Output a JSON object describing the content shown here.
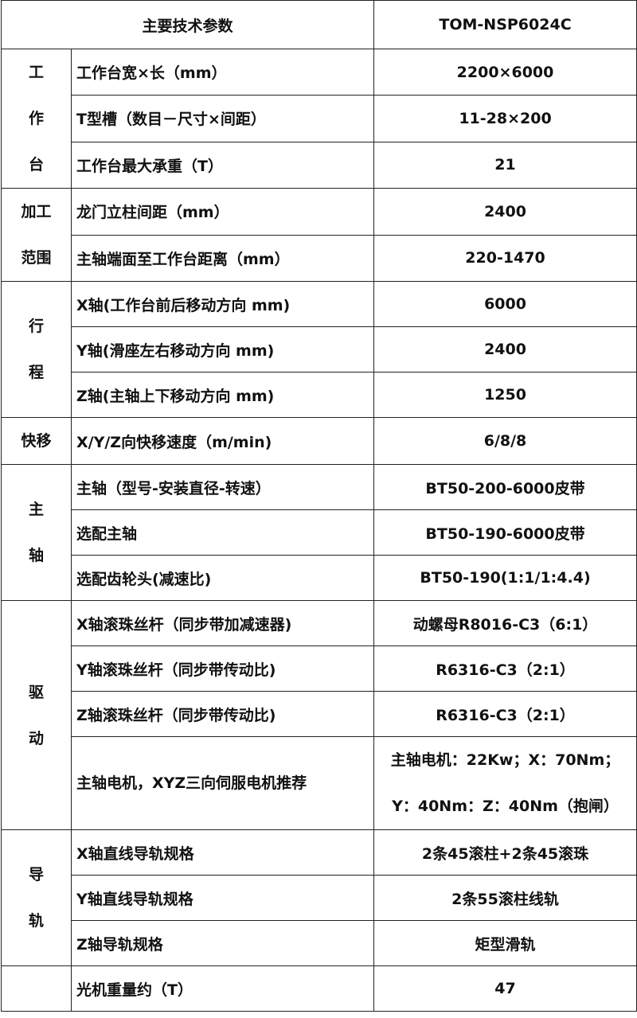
{
  "header": {
    "title": "主要技术参数",
    "model": "TOM-NSP6024C"
  },
  "groups": [
    {
      "label": "工作台",
      "rows": [
        [
          "工作台宽×长（mm）",
          "2200×6000"
        ],
        [
          "T型槽（数目－尺寸×间距）",
          "11-28×200"
        ],
        [
          "工作台最大承重（T）",
          "21"
        ]
      ]
    },
    {
      "label": "加工范围",
      "rows": [
        [
          "龙门立柱间距（mm）",
          "2400"
        ],
        [
          "主轴端面至工作台距离（mm）",
          "220-1470"
        ]
      ]
    },
    {
      "label": "行程",
      "rows": [
        [
          "X轴(工作台前后移动方向 mm)",
          "6000"
        ],
        [
          "Y轴(滑座左右移动方向 mm)",
          "2400"
        ],
        [
          "Z轴(主轴上下移动方向 mm)",
          "1250"
        ]
      ]
    },
    {
      "label": "快移",
      "rows": [
        [
          "X/Y/Z向快移速度（m/min)",
          "6/8/8"
        ]
      ]
    },
    {
      "label": "主轴",
      "rows": [
        [
          "主轴（型号-安装直径-转速）",
          "BT50-200-6000皮带"
        ],
        [
          "选配主轴",
          "BT50-190-6000皮带"
        ],
        [
          "选配齿轮头(减速比)",
          "BT50-190(1:1/1:4.4)"
        ]
      ]
    },
    {
      "label": "驱动",
      "rows": [
        [
          "X轴滚珠丝杆（同步带加减速器)",
          "动螺母R8016-C3（6:1）"
        ],
        [
          "Y轴滚珠丝杆（同步带传动比)",
          "R6316-C3（2:1）"
        ],
        [
          "Z轴滚珠丝杆（同步带传动比)",
          "R6316-C3（2:1）"
        ],
        [
          "主轴电机，XYZ三向伺服电机推荐",
          "主轴电机：22Kw；X：70Nm；Y：40Nm：Z：40Nm（抱闸）"
        ]
      ]
    },
    {
      "label": "导轨",
      "rows": [
        [
          "X轴直线导轨规格",
          "2条45滚柱+2条45滚珠"
        ],
        [
          "Y轴直线导轨规格",
          "2条55滚柱线轨"
        ],
        [
          "Z轴导轨规格",
          "矩型滑轨"
        ]
      ]
    },
    {
      "rows": [
        [
          "光机重量约（T）",
          "47"
        ]
      ]
    }
  ]
}
